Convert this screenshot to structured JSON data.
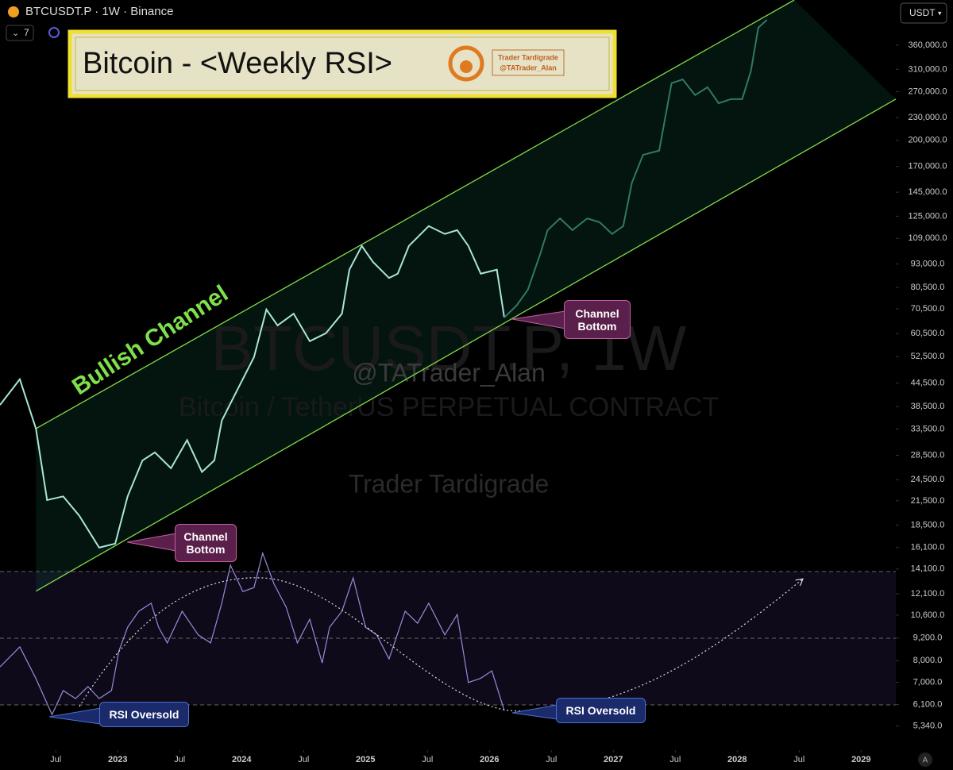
{
  "toolbar": {
    "symbol": "BTCUSDT.P · 1W · Binance",
    "indicator_count": "7",
    "currency": "USDT",
    "scale_mode": "A"
  },
  "chart_data": {
    "type": "line",
    "title": "Bitcoin - <Weekly RSI>",
    "brand_name": "Trader Tardigrade",
    "brand_handle": "@TATrader_Alan",
    "watermark": {
      "symbol": "BTCUSDT.P, 1W",
      "handle": "@TATrader_Alan",
      "description": "Bitcoin / TetherUS PERPETUAL CONTRACT",
      "author": "Trader Tardigrade"
    },
    "log_scale": true,
    "xlim": [
      2022.05,
      2029.28
    ],
    "ylim": [
      4600,
      476000
    ],
    "y2lim": [
      20,
      80
    ],
    "rsi_levels": [
      30,
      50,
      70
    ],
    "xticks": [
      {
        "value": 2022.5,
        "label": "Jul"
      },
      2023,
      {
        "value": 2023.5,
        "label": "Jul"
      },
      2024,
      {
        "value": 2024.5,
        "label": "Jul"
      },
      2025,
      {
        "value": 2025.5,
        "label": "Jul"
      },
      2026,
      {
        "value": 2026.5,
        "label": "Jul"
      },
      2027,
      {
        "value": 2027.5,
        "label": "Jul"
      },
      2028,
      {
        "value": 2028.5,
        "label": "Jul"
      },
      2029
    ],
    "yticks": [
      {
        "value": 360000,
        "label": "360,000.0"
      },
      {
        "value": 310000,
        "label": "310,000.0"
      },
      {
        "value": 270000,
        "label": "270,000.0"
      },
      {
        "value": 230000,
        "label": "230,000.0"
      },
      {
        "value": 200000,
        "label": "200,000.0"
      },
      {
        "value": 170000,
        "label": "170,000.0"
      },
      {
        "value": 145000,
        "label": "145,000.0"
      },
      {
        "value": 125000,
        "label": "125,000.0"
      },
      {
        "value": 109000,
        "label": "109,000.0"
      },
      {
        "value": 93000,
        "label": "93,000.0"
      },
      {
        "value": 80500,
        "label": "80,500.0"
      },
      {
        "value": 70500,
        "label": "70,500.0"
      },
      {
        "value": 60500,
        "label": "60,500.0"
      },
      {
        "value": 52500,
        "label": "52,500.0"
      },
      {
        "value": 44500,
        "label": "44,500.0"
      },
      {
        "value": 38500,
        "label": "38,500.0"
      },
      {
        "value": 33500,
        "label": "33,500.0"
      },
      {
        "value": 28500,
        "label": "28,500.0"
      },
      {
        "value": 24500,
        "label": "24,500.0"
      },
      {
        "value": 21500,
        "label": "21,500.0"
      },
      {
        "value": 18500,
        "label": "18,500.0"
      },
      {
        "value": 16100,
        "label": "16,100.0"
      },
      {
        "value": 14100,
        "label": "14,100.0"
      },
      {
        "value": 12100,
        "label": "12,100.0"
      },
      {
        "value": 10600,
        "label": "10,600.0"
      },
      {
        "value": 9200,
        "label": "9,200.0"
      },
      {
        "value": 8000,
        "label": "8,000.0"
      },
      {
        "value": 7000,
        "label": "7,000.0"
      },
      {
        "value": 6100,
        "label": "6,100.0"
      },
      {
        "value": 5340,
        "label": "5,340.0"
      }
    ],
    "channel": {
      "color": "#7fdc4a",
      "upper": {
        "x": [
          2022.34,
          2028.46
        ],
        "values": [
          33600,
          476000
        ]
      },
      "lower": {
        "x": [
          2022.34,
          2029.28
        ],
        "values": [
          12300,
          257900
        ]
      }
    },
    "series": [
      {
        "color": "#a8e6d6",
        "x": [
          2022.05,
          2022.21,
          2022.34,
          2022.43,
          2022.56,
          2022.69,
          2022.85,
          2022.98,
          2023.08,
          2023.2,
          2023.3,
          2023.43,
          2023.56,
          2023.68,
          2023.78,
          2023.84,
          2023.97,
          2024.1,
          2024.2,
          2024.29,
          2024.42,
          2024.55,
          2024.68,
          2024.81,
          2024.87,
          2024.97,
          2025.06,
          2025.19,
          2025.26,
          2025.35,
          2025.51,
          2025.64,
          2025.74,
          2025.83,
          2025.93,
          2026.06,
          2026.12
        ],
        "values": [
          38900,
          45600,
          33600,
          21600,
          22100,
          19600,
          16100,
          16500,
          22100,
          27600,
          29000,
          26300,
          31300,
          25700,
          27600,
          35300,
          43000,
          52300,
          70200,
          63600,
          68400,
          57700,
          60600,
          68400,
          89800,
          104000,
          94200,
          85300,
          87600,
          104000,
          117600,
          112000,
          114700,
          104000,
          87600,
          89800,
          66800
        ]
      },
      {
        "color": "#2f7a62",
        "x": [
          2026.12,
          2026.22,
          2026.31,
          2026.41,
          2026.47,
          2026.57,
          2026.67,
          2026.79,
          2026.89,
          2026.99,
          2027.08,
          2027.15,
          2027.24,
          2027.37,
          2027.47,
          2027.56,
          2027.66,
          2027.76,
          2027.85,
          2027.95,
          2028.04,
          2028.11,
          2028.17,
          2028.24
        ],
        "values": [
          66800,
          72000,
          79300,
          98900,
          114700,
          123300,
          114700,
          123300,
          120400,
          112000,
          117600,
          153800,
          182700,
          187500,
          284600,
          291300,
          264300,
          277600,
          251400,
          257900,
          257900,
          306400,
          401000,
          421000
        ]
      },
      {
        "color": "#9a8ad8",
        "axis": "y2",
        "x": [
          2022.05,
          2022.21,
          2022.34,
          2022.47,
          2022.56,
          2022.66,
          2022.76,
          2022.85,
          2022.95,
          2023.01,
          2023.08,
          2023.17,
          2023.27,
          2023.33,
          2023.4,
          2023.52,
          2023.65,
          2023.75,
          2023.84,
          2023.91,
          2024.01,
          2024.1,
          2024.17,
          2024.26,
          2024.36,
          2024.45,
          2024.55,
          2024.65,
          2024.71,
          2024.81,
          2024.9,
          2025.0,
          2025.09,
          2025.19,
          2025.32,
          2025.42,
          2025.51,
          2025.64,
          2025.74,
          2025.83,
          2025.93,
          2026.02,
          2026.12
        ],
        "values": [
          41.4,
          47.4,
          37.9,
          27.1,
          34.3,
          31.9,
          35.5,
          31.9,
          34.3,
          46.2,
          53.3,
          58.1,
          60.5,
          53.3,
          48.6,
          58.1,
          51.0,
          48.6,
          60.5,
          71.9,
          64.0,
          65.2,
          75.5,
          66.4,
          59.3,
          48.6,
          55.7,
          42.6,
          53.3,
          58.1,
          68.1,
          53.3,
          51.0,
          43.8,
          58.1,
          54.5,
          60.5,
          51.0,
          57.1,
          36.7,
          38.0,
          40.2,
          28.3
        ]
      }
    ],
    "annotations": [
      {
        "text": "Bullish Channel"
      },
      {
        "text": "Channel Bottom"
      },
      {
        "text": "Channel Bottom"
      },
      {
        "text": "RSI Oversold"
      },
      {
        "text": "RSI Oversold"
      }
    ]
  }
}
